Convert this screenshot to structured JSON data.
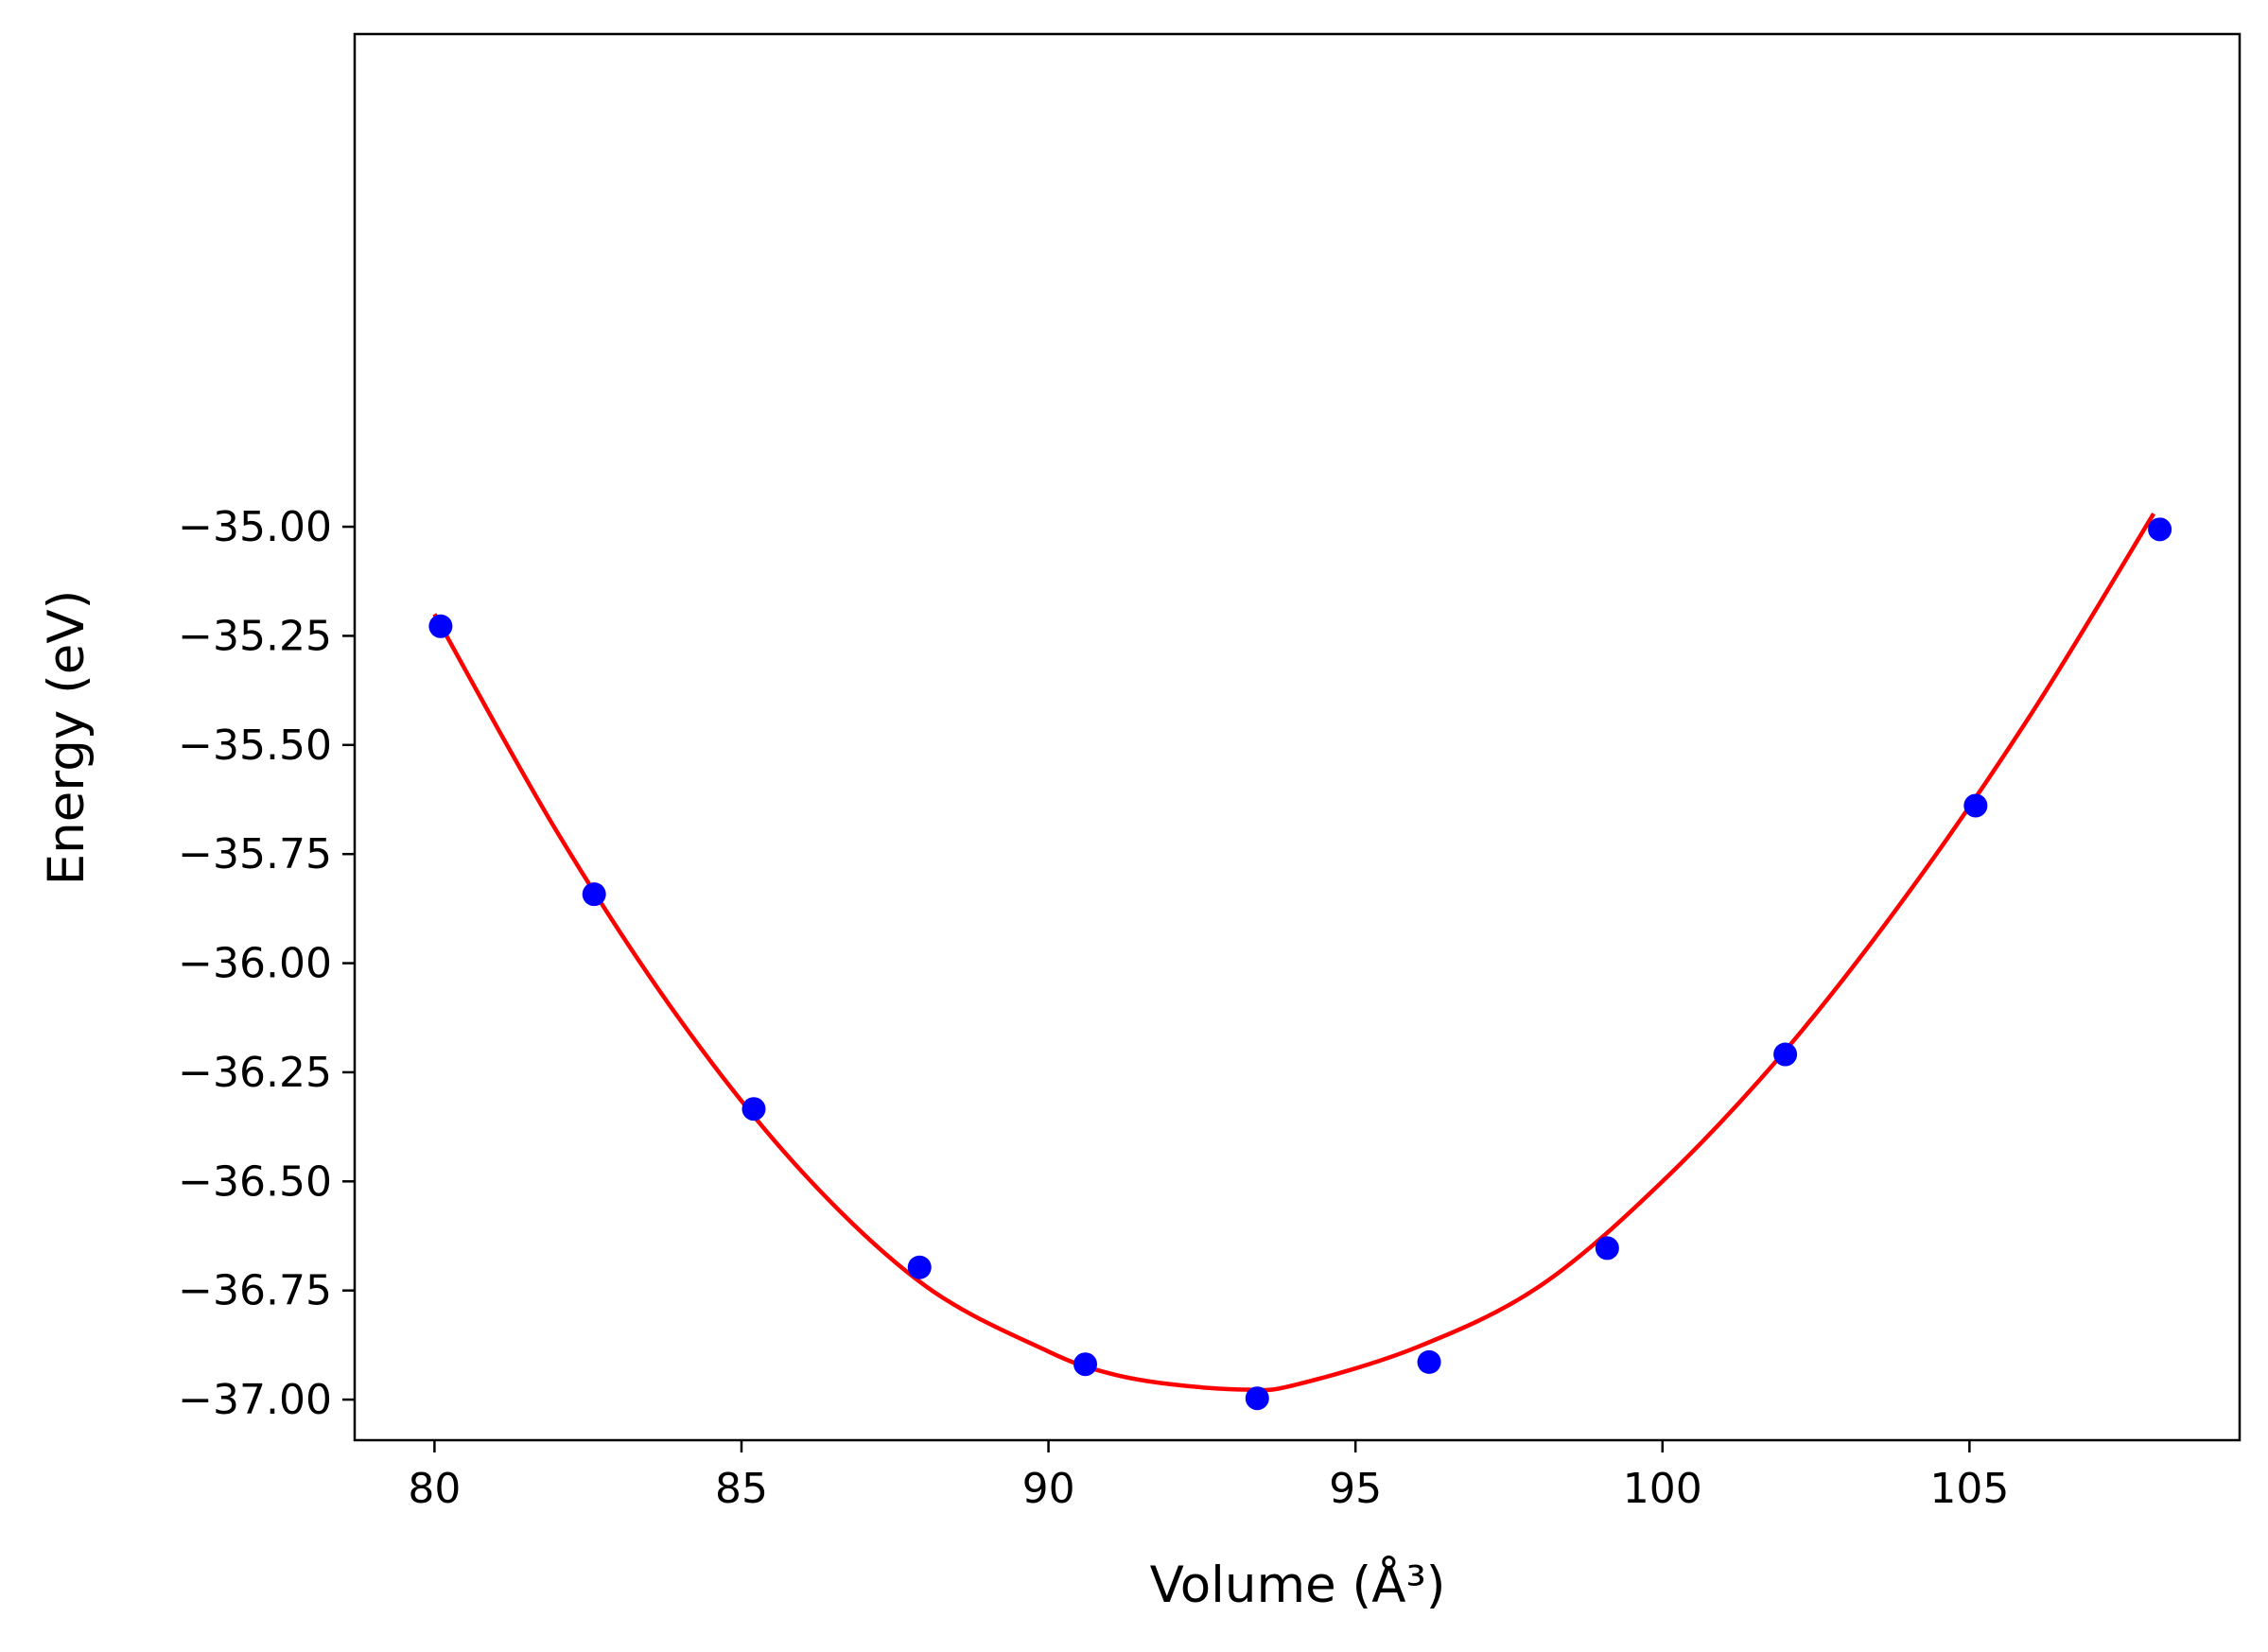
{
  "chart_data": {
    "type": "scatter",
    "title": "",
    "xlabel": "Volume (Å³)",
    "ylabel": "Energy (eV)",
    "xlim": [
      78.7,
      109.4
    ],
    "ylim": [
      -37.093,
      -33.871
    ],
    "xticks": [
      80,
      85,
      90,
      95,
      100,
      105
    ],
    "xtick_labels": [
      "80",
      "85",
      "90",
      "95",
      "100",
      "105"
    ],
    "yticks": [
      -35.0,
      -35.25,
      -35.5,
      -35.75,
      -36.0,
      -36.25,
      -36.5,
      -36.75,
      -37.0
    ],
    "ytick_labels": [
      "−35.00",
      "−35.25",
      "−35.50",
      "−35.75",
      "−36.00",
      "−36.25",
      "−36.50",
      "−36.75",
      "−37.00"
    ],
    "grid": false,
    "series": [
      {
        "kind": "points",
        "color": "#0000ff",
        "x": [
          80.1,
          82.6,
          85.2,
          87.9,
          90.6,
          93.4,
          96.2,
          99.1,
          102.0,
          105.1,
          108.1
        ],
        "y": [
          -35.228,
          -35.842,
          -36.334,
          -36.697,
          -36.919,
          -36.997,
          -36.914,
          -36.653,
          -36.209,
          -35.639,
          -35.006
        ]
      },
      {
        "kind": "fit-curve",
        "color": "#ff0000",
        "x": [
          80.0,
          82.0,
          84.0,
          86.0,
          88.0,
          90.0,
          91.0,
          92.0,
          93.2,
          94.0,
          96.0,
          98.0,
          100.0,
          102.0,
          104.0,
          106.0,
          108.0
        ],
        "y": [
          -35.2,
          -35.7,
          -36.13,
          -36.48,
          -36.74,
          -36.89,
          -36.94,
          -36.965,
          -36.977,
          -36.967,
          -36.88,
          -36.74,
          -36.5,
          -36.2,
          -35.84,
          -35.43,
          -34.97
        ]
      }
    ]
  }
}
